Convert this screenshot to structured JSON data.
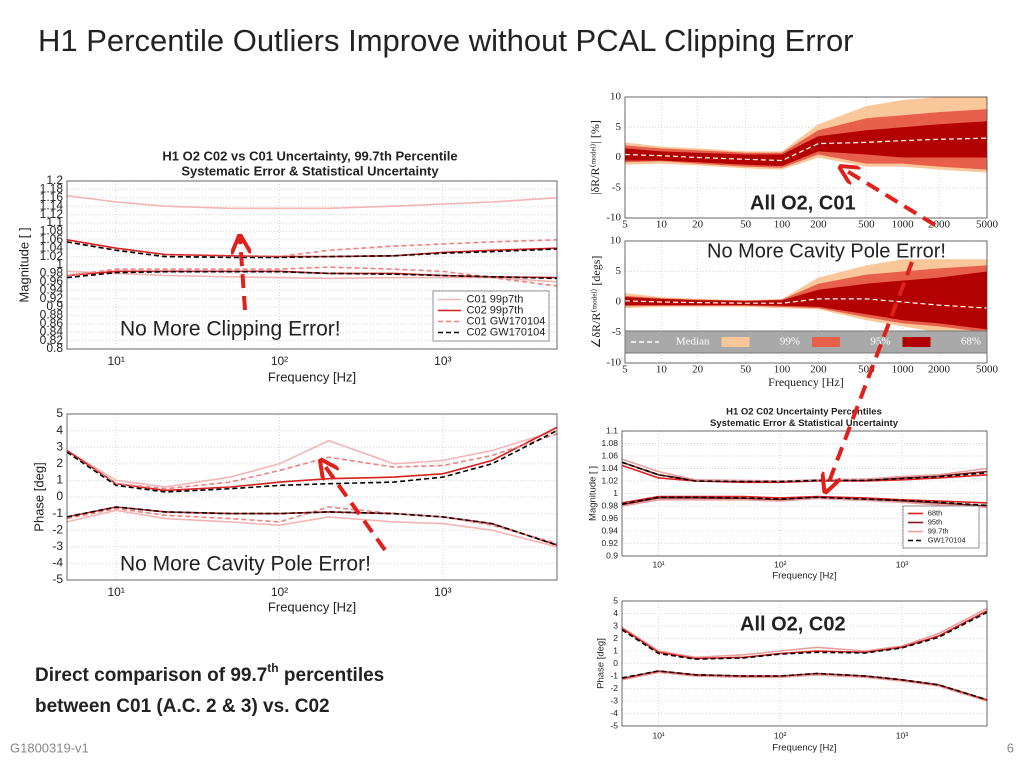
{
  "title": "H1 Percentile Outliers Improve without PCAL Clipping Error",
  "annotations": [
    "No More Clipping Error!",
    "No More Cavity Pole Error!",
    "All O2, C01",
    "No More Cavity Pole Error!",
    "All O2, C02"
  ],
  "caption": {
    "line1": [
      "Direct comparison of 99.7",
      "th",
      " percentiles"
    ],
    "line2": "between C01 (A.C. 2 & 3) vs. C02"
  },
  "footer": "G1800319-v1",
  "page_number": 6,
  "chart_data": [
    {
      "type": "line",
      "title": "H1 O2 C02 vs C01 Uncertainty, 99.7th Percentile",
      "subtitle": "Systematic Error & Statistical Uncertainty",
      "xlabel": "Frequency [Hz]",
      "ylabel": "Magnitude [ ]",
      "log_x": true,
      "grid": true,
      "legend": "lower right",
      "x": [
        5,
        10,
        20,
        50,
        100,
        200,
        500,
        1000,
        2000,
        5000
      ],
      "xlim": [
        5,
        5000
      ],
      "xticks": [
        {
          "value": 10,
          "label": "10¹"
        },
        {
          "value": 100,
          "label": "10²"
        },
        {
          "value": 1000,
          "label": "10³"
        }
      ],
      "ylim": [
        0.8,
        1.2
      ],
      "yticks": [
        0.8,
        0.82,
        0.84,
        0.86,
        0.88,
        0.9,
        0.92,
        0.94,
        0.96,
        0.98,
        1,
        1.02,
        1.04,
        1.06,
        1.08,
        1.1,
        1.12,
        1.14,
        1.16,
        1.18,
        1.2
      ],
      "series": [
        {
          "name": "C01 99p7th",
          "color": "#f4b4b4",
          "linestyle": "solid",
          "upper": [
            1.165,
            1.15,
            1.14,
            1.135,
            1.135,
            1.135,
            1.14,
            1.145,
            1.15,
            1.16
          ],
          "lower": [
            0.985,
            0.98,
            0.975,
            0.972,
            0.97,
            0.968,
            0.97,
            0.97,
            0.97,
            0.96
          ]
        },
        {
          "name": "C02 99p7th",
          "color": "#d62020",
          "linestyle": "solid",
          "upper": [
            1.06,
            1.04,
            1.025,
            1.022,
            1.02,
            1.02,
            1.022,
            1.03,
            1.035,
            1.04
          ],
          "lower": [
            0.975,
            0.985,
            0.985,
            0.985,
            0.985,
            0.98,
            0.98,
            0.975,
            0.972,
            0.97
          ]
        },
        {
          "name": "C01 GW170104",
          "color": "#f08080",
          "linestyle": "dashed",
          "upper": [
            1.055,
            1.035,
            1.02,
            1.02,
            1.02,
            1.035,
            1.045,
            1.05,
            1.055,
            1.06
          ],
          "lower": [
            0.975,
            0.99,
            0.99,
            0.99,
            0.99,
            0.995,
            0.99,
            0.985,
            0.97,
            0.95
          ]
        },
        {
          "name": "C02 GW170104",
          "color": "#000000",
          "linestyle": "dashed",
          "upper": [
            1.055,
            1.035,
            1.02,
            1.018,
            1.018,
            1.02,
            1.022,
            1.028,
            1.032,
            1.038
          ],
          "lower": [
            0.97,
            0.982,
            0.984,
            0.984,
            0.984,
            0.98,
            0.978,
            0.975,
            0.972,
            0.968
          ]
        }
      ]
    },
    {
      "type": "line",
      "xlabel": "Frequency [Hz]",
      "ylabel": "Phase [deg]",
      "log_x": true,
      "grid": true,
      "x": [
        5,
        10,
        20,
        50,
        100,
        200,
        500,
        1000,
        2000,
        5000
      ],
      "xlim": [
        5,
        5000
      ],
      "xticks": [
        {
          "value": 10,
          "label": "10¹"
        },
        {
          "value": 100,
          "label": "10²"
        },
        {
          "value": 1000,
          "label": "10³"
        }
      ],
      "ylim": [
        -5,
        5
      ],
      "yticks": [
        -5,
        -4,
        -3,
        -2,
        -1,
        0,
        1,
        2,
        3,
        4,
        5
      ],
      "series": [
        {
          "color": "#f4b4b4",
          "linestyle": "solid",
          "upper": [
            2.8,
            1,
            0.6,
            1.2,
            2,
            3.4,
            2,
            2.2,
            2.8,
            4
          ],
          "lower": [
            -1.5,
            -0.8,
            -1.3,
            -1.5,
            -1.7,
            -1.2,
            -1.5,
            -1.6,
            -2,
            -3
          ]
        },
        {
          "color": "#d62020",
          "linestyle": "solid",
          "upper": [
            2.8,
            0.8,
            0.4,
            0.6,
            0.9,
            1.1,
            1.2,
            1.4,
            2.2,
            4.2
          ],
          "lower": [
            -1.2,
            -0.6,
            -0.9,
            -1,
            -1,
            -0.9,
            -1,
            -1.2,
            -1.6,
            -2.9
          ]
        },
        {
          "color": "#f08080",
          "linestyle": "dashed",
          "upper": [
            2.7,
            0.8,
            0.5,
            0.9,
            1.6,
            2.4,
            1.8,
            1.9,
            2.5,
            3.8
          ],
          "lower": [
            -1.3,
            -0.7,
            -1.1,
            -1.3,
            -1.5,
            -0.6,
            -1,
            -1.2,
            -1.7,
            -2.8
          ]
        },
        {
          "color": "#000000",
          "linestyle": "dashed",
          "upper": [
            2.7,
            0.7,
            0.3,
            0.5,
            0.7,
            0.8,
            0.9,
            1.2,
            2,
            4
          ],
          "lower": [
            -1.2,
            -0.6,
            -0.9,
            -1,
            -1,
            -0.9,
            -1,
            -1.2,
            -1.6,
            -2.9
          ]
        }
      ]
    },
    {
      "type": "band",
      "ylabel": "|δR/R⁽ᵐᵒᵈᵉˡ⁾| [%]",
      "log_x": true,
      "grid": true,
      "x": [
        5,
        10,
        20,
        50,
        100,
        200,
        500,
        1000,
        2000,
        5000
      ],
      "xlim": [
        5,
        5000
      ],
      "xticks": [
        5,
        10,
        20,
        50,
        100,
        200,
        500,
        1000,
        2000,
        5000
      ],
      "ylim": [
        -10,
        10
      ],
      "yticks": [
        -10,
        -5,
        0,
        5,
        10
      ],
      "series": [
        {
          "color": "#f9c79a",
          "upper": [
            2.5,
            1.8,
            1.5,
            1,
            1,
            5.5,
            8.5,
            9.5,
            10,
            10
          ],
          "lower": [
            -1.2,
            -1,
            -1.3,
            -1.8,
            -2,
            0,
            -1.5,
            -1.5,
            -2,
            -2.5
          ]
        },
        {
          "color": "#e8604c",
          "upper": [
            2,
            1.5,
            1.2,
            0.8,
            0.8,
            4.5,
            6.5,
            7,
            7.5,
            8
          ],
          "lower": [
            -0.8,
            -0.6,
            -1,
            -1.5,
            -1.7,
            0.5,
            -1,
            -1,
            -1.5,
            -2
          ]
        },
        {
          "color": "#b30000",
          "upper": [
            1.5,
            1,
            0.8,
            0.5,
            0.5,
            3.5,
            4.5,
            5,
            5.5,
            6
          ],
          "lower": [
            -0.5,
            -0.5,
            -0.8,
            -1.2,
            -1.4,
            1,
            0.5,
            0,
            0,
            0
          ]
        },
        {
          "color": "#ffffff",
          "linestyle": "dashed",
          "values": [
            0.5,
            0.3,
            0,
            -0.3,
            -0.5,
            2.3,
            2.5,
            2.8,
            3,
            3.2
          ]
        }
      ]
    },
    {
      "type": "band",
      "xlabel": "Frequency [Hz]",
      "ylabel": "∠δR/R⁽ᵐᵒᵈᵉˡ⁾ [degs]",
      "log_x": true,
      "grid": true,
      "legend": "lower center",
      "x": [
        5,
        10,
        20,
        50,
        100,
        200,
        500,
        1000,
        2000,
        5000
      ],
      "xlim": [
        5,
        5000
      ],
      "xticks": [
        5,
        10,
        20,
        50,
        100,
        200,
        500,
        1000,
        2000,
        5000
      ],
      "ylim": [
        -10,
        10
      ],
      "yticks": [
        -10,
        -5,
        0,
        5,
        10
      ],
      "series": [
        {
          "name": "Median",
          "color": "#ffffff",
          "linestyle": "dashed",
          "values": [
            0.2,
            0,
            -0.1,
            -0.2,
            -0.2,
            0.5,
            0.5,
            0,
            -0.5,
            -1
          ]
        },
        {
          "name": "99%",
          "color": "#f9c79a",
          "upper": [
            1.5,
            0.8,
            0.5,
            0.3,
            0.5,
            4,
            6,
            7,
            7,
            7
          ],
          "lower": [
            -1,
            -0.8,
            -0.8,
            -0.8,
            -1,
            -1.2,
            -3,
            -4,
            -5,
            -6
          ]
        },
        {
          "name": "95%",
          "color": "#e8604c",
          "upper": [
            1,
            0.6,
            0.4,
            0.2,
            0.4,
            3,
            4.5,
            5,
            5.5,
            6
          ],
          "lower": [
            -0.7,
            -0.6,
            -0.6,
            -0.6,
            -0.8,
            -1,
            -2.5,
            -3.5,
            -4,
            -5
          ]
        },
        {
          "name": "68%",
          "color": "#b30000",
          "upper": [
            0.8,
            0.5,
            0.3,
            0.2,
            0.3,
            2,
            3,
            3.5,
            4,
            5
          ],
          "lower": [
            -0.5,
            -0.5,
            -0.5,
            -0.5,
            -0.6,
            -0.8,
            -2,
            -3,
            -3.5,
            -4.5
          ]
        }
      ]
    },
    {
      "type": "line",
      "title": "H1 O2 C02 Uncertainty Percentiles",
      "subtitle": "Systematic Error & Statistical Uncertainty",
      "xlabel": "Frequency [Hz]",
      "ylabel": "Magnitude [ ]",
      "log_x": true,
      "grid": true,
      "legend": "lower right",
      "x": [
        5,
        10,
        20,
        50,
        100,
        200,
        500,
        1000,
        2000,
        5000
      ],
      "xlim": [
        5,
        5000
      ],
      "xticks": [
        {
          "value": 10,
          "label": "10¹"
        },
        {
          "value": 100,
          "label": "10²"
        },
        {
          "value": 1000,
          "label": "10³"
        }
      ],
      "ylim": [
        0.9,
        1.1
      ],
      "yticks": [
        0.9,
        0.92,
        0.94,
        0.96,
        0.98,
        1,
        1.02,
        1.04,
        1.06,
        1.08,
        1.1
      ],
      "series": [
        {
          "name": "68th",
          "color": "#e02020",
          "linestyle": "solid",
          "upper": [
            1.045,
            1.025,
            1.02,
            1.018,
            1.018,
            1.02,
            1.02,
            1.022,
            1.025,
            1.03
          ],
          "lower": [
            0.985,
            0.995,
            0.995,
            0.995,
            0.993,
            0.995,
            0.993,
            0.99,
            0.988,
            0.985
          ]
        },
        {
          "name": "95th",
          "color": "#8b1a1a",
          "linestyle": "solid",
          "upper": [
            1.05,
            1.03,
            1.021,
            1.02,
            1.019,
            1.021,
            1.022,
            1.025,
            1.028,
            1.035
          ],
          "lower": [
            0.982,
            0.993,
            0.993,
            0.992,
            0.99,
            0.993,
            0.99,
            0.988,
            0.985,
            0.98
          ]
        },
        {
          "name": "99.7th",
          "color": "#e8a0a0",
          "linestyle": "solid",
          "upper": [
            1.055,
            1.035,
            1.022,
            1.021,
            1.02,
            1.022,
            1.023,
            1.027,
            1.03,
            1.04
          ],
          "lower": [
            0.98,
            0.99,
            0.99,
            0.99,
            0.988,
            0.992,
            0.989,
            0.986,
            0.982,
            0.978
          ]
        },
        {
          "name": "GW170104",
          "color": "#000000",
          "linestyle": "dashed",
          "upper": [
            1.05,
            1.03,
            1.02,
            1.019,
            1.019,
            1.021,
            1.021,
            1.024,
            1.027,
            1.033
          ],
          "lower": [
            0.983,
            0.994,
            0.994,
            0.993,
            0.991,
            0.994,
            0.991,
            0.989,
            0.986,
            0.981
          ]
        }
      ]
    },
    {
      "type": "line",
      "xlabel": "Frequency [Hz]",
      "ylabel": "Phase [deg]",
      "log_x": true,
      "grid": true,
      "x": [
        5,
        10,
        20,
        50,
        100,
        200,
        500,
        1000,
        2000,
        5000
      ],
      "xlim": [
        5,
        5000
      ],
      "xticks": [
        {
          "value": 10,
          "label": "10¹"
        },
        {
          "value": 100,
          "label": "10²"
        },
        {
          "value": 1000,
          "label": "10³"
        }
      ],
      "ylim": [
        -5,
        5
      ],
      "yticks": [
        -5,
        -4,
        -3,
        -2,
        -1,
        0,
        1,
        2,
        3,
        4,
        5
      ],
      "series": [
        {
          "color": "#e8a0a0",
          "linestyle": "solid",
          "upper": [
            2.9,
            1,
            0.5,
            0.7,
            1,
            1.3,
            1,
            1.4,
            2.4,
            4.4
          ],
          "lower": [
            -1.3,
            -0.7,
            -1,
            -1.1,
            -1.1,
            -0.9,
            -1.1,
            -1.4,
            -1.8,
            -3
          ]
        },
        {
          "color": "#e02020",
          "linestyle": "solid",
          "upper": [
            2.8,
            0.9,
            0.4,
            0.5,
            0.8,
            1,
            0.9,
            1.3,
            2.2,
            4.2
          ],
          "lower": [
            -1.2,
            -0.6,
            -0.9,
            -1,
            -1,
            -0.8,
            -1,
            -1.3,
            -1.7,
            -2.9
          ]
        },
        {
          "color": "#000000",
          "linestyle": "dashed",
          "upper": [
            2.7,
            0.8,
            0.35,
            0.45,
            0.75,
            0.9,
            0.85,
            1.25,
            2.1,
            4.1
          ],
          "lower": [
            -1.15,
            -0.6,
            -0.9,
            -1,
            -1,
            -0.8,
            -1,
            -1.3,
            -1.7,
            -2.9
          ]
        }
      ]
    }
  ]
}
